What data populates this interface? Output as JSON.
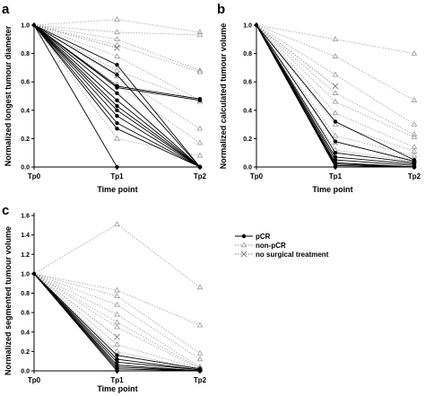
{
  "colors": {
    "pcr": "#000000",
    "non_pcr": "#999999",
    "no_surgery": "#777777",
    "axis": "#000000"
  },
  "legend": {
    "placement": "right-middle",
    "entries": [
      {
        "key": "pcr",
        "label": "pCR",
        "marker": "filled-circle",
        "line": "solid"
      },
      {
        "key": "non_pcr",
        "label": "non-pCR",
        "marker": "open-triangle",
        "line": "dotted"
      },
      {
        "key": "no_surgery",
        "label": "no surgical treatment",
        "marker": "cross",
        "line": "dotted"
      }
    ]
  },
  "chart_data": [
    {
      "panel_letter": "a",
      "type": "line",
      "xlabel": "Time point",
      "ylabel": "Normalized longest tumour diameter",
      "categories": [
        "Tp0",
        "Tp1",
        "Tp2"
      ],
      "ylim": [
        0,
        1.0
      ],
      "yticks": [
        "0.0",
        "0.2",
        "0.4",
        "0.6",
        "0.8",
        "1.0"
      ],
      "grid": false,
      "series": [
        {
          "group": "non_pcr",
          "values": [
            1.0,
            1.04,
            0.95
          ]
        },
        {
          "group": "non_pcr",
          "values": [
            1.0,
            0.95,
            0.93
          ]
        },
        {
          "group": "non_pcr",
          "values": [
            1.0,
            0.9,
            0.68
          ]
        },
        {
          "group": "non_pcr",
          "values": [
            1.0,
            0.86,
            0.67
          ]
        },
        {
          "group": "no_surgery",
          "values": [
            1.0,
            0.84,
            null
          ]
        },
        {
          "group": "non_pcr",
          "values": [
            1.0,
            0.78,
            0.47
          ]
        },
        {
          "group": "non_pcr",
          "values": [
            1.0,
            0.68,
            0.46
          ]
        },
        {
          "group": "non_pcr",
          "values": [
            1.0,
            0.64,
            0.27
          ]
        },
        {
          "group": "non_pcr",
          "values": [
            1.0,
            0.58,
            0.17
          ]
        },
        {
          "group": "non_pcr",
          "values": [
            1.0,
            0.2,
            0.08
          ]
        },
        {
          "group": "pcr",
          "values": [
            1.0,
            0.72,
            0.0
          ]
        },
        {
          "group": "pcr",
          "values": [
            1.0,
            0.65,
            0.0
          ]
        },
        {
          "group": "pcr",
          "values": [
            1.0,
            0.57,
            0.48
          ]
        },
        {
          "group": "pcr",
          "values": [
            1.0,
            0.56,
            0.47
          ]
        },
        {
          "group": "pcr",
          "values": [
            1.0,
            0.52,
            0.0
          ]
        },
        {
          "group": "pcr",
          "values": [
            1.0,
            0.47,
            0.0
          ]
        },
        {
          "group": "pcr",
          "values": [
            1.0,
            0.43,
            0.0
          ]
        },
        {
          "group": "pcr",
          "values": [
            1.0,
            0.4,
            0.0
          ]
        },
        {
          "group": "pcr",
          "values": [
            1.0,
            0.36,
            0.0
          ]
        },
        {
          "group": "pcr",
          "values": [
            1.0,
            0.31,
            0.0
          ]
        },
        {
          "group": "pcr",
          "values": [
            1.0,
            0.27,
            0.0
          ]
        },
        {
          "group": "pcr",
          "values": [
            1.0,
            0.0,
            null
          ]
        }
      ]
    },
    {
      "panel_letter": "b",
      "type": "line",
      "xlabel": "Time point",
      "ylabel": "Normalized calculated tumour volume",
      "categories": [
        "Tp0",
        "Tp1",
        "Tp2"
      ],
      "ylim": [
        0,
        1.0
      ],
      "yticks": [
        "0.0",
        "0.2",
        "0.4",
        "0.6",
        "0.8",
        "1.0"
      ],
      "grid": false,
      "series": [
        {
          "group": "non_pcr",
          "values": [
            1.0,
            0.9,
            0.8
          ]
        },
        {
          "group": "non_pcr",
          "values": [
            1.0,
            0.78,
            0.47
          ]
        },
        {
          "group": "non_pcr",
          "values": [
            1.0,
            0.65,
            0.3
          ]
        },
        {
          "group": "no_surgery",
          "values": [
            1.0,
            0.57,
            null
          ]
        },
        {
          "group": "non_pcr",
          "values": [
            1.0,
            0.52,
            0.23
          ]
        },
        {
          "group": "non_pcr",
          "values": [
            1.0,
            0.46,
            0.21
          ]
        },
        {
          "group": "non_pcr",
          "values": [
            1.0,
            0.38,
            0.14
          ]
        },
        {
          "group": "non_pcr",
          "values": [
            1.0,
            0.3,
            0.11
          ]
        },
        {
          "group": "non_pcr",
          "values": [
            1.0,
            0.22,
            0.08
          ]
        },
        {
          "group": "non_pcr",
          "values": [
            1.0,
            0.17,
            0.05
          ]
        },
        {
          "group": "non_pcr",
          "values": [
            1.0,
            0.12,
            0.04
          ]
        },
        {
          "group": "pcr",
          "values": [
            1.0,
            0.32,
            0.05
          ]
        },
        {
          "group": "pcr",
          "values": [
            1.0,
            0.18,
            0.04
          ]
        },
        {
          "group": "pcr",
          "values": [
            1.0,
            0.1,
            0.03
          ]
        },
        {
          "group": "pcr",
          "values": [
            1.0,
            0.07,
            0.02
          ]
        },
        {
          "group": "pcr",
          "values": [
            1.0,
            0.05,
            0.01
          ]
        },
        {
          "group": "pcr",
          "values": [
            1.0,
            0.03,
            0.0
          ]
        },
        {
          "group": "pcr",
          "values": [
            1.0,
            0.02,
            0.0
          ]
        },
        {
          "group": "pcr",
          "values": [
            1.0,
            0.01,
            0.0
          ]
        },
        {
          "group": "pcr",
          "values": [
            1.0,
            0.0,
            0.0
          ]
        }
      ]
    },
    {
      "panel_letter": "c",
      "type": "line",
      "xlabel": "Time point",
      "ylabel": "Normalized segmented tumour volume",
      "categories": [
        "Tp0",
        "Tp1",
        "Tp2"
      ],
      "ylim": [
        0,
        1.6
      ],
      "yticks": [
        "0.0",
        "0.2",
        "0.4",
        "0.6",
        "0.8",
        "1.0",
        "1.2",
        "1.4",
        "1.6"
      ],
      "grid": false,
      "series": [
        {
          "group": "non_pcr",
          "values": [
            1.0,
            1.51,
            0.86
          ]
        },
        {
          "group": "non_pcr",
          "values": [
            1.0,
            0.83,
            0.47
          ]
        },
        {
          "group": "non_pcr",
          "values": [
            1.0,
            0.77,
            0.18
          ]
        },
        {
          "group": "non_pcr",
          "values": [
            1.0,
            0.68,
            0.12
          ]
        },
        {
          "group": "non_pcr",
          "values": [
            1.0,
            0.58,
            0.04
          ]
        },
        {
          "group": "non_pcr",
          "values": [
            1.0,
            0.5,
            0.03
          ]
        },
        {
          "group": "non_pcr",
          "values": [
            1.0,
            0.45,
            0.02
          ]
        },
        {
          "group": "no_surgery",
          "values": [
            1.0,
            0.35,
            null
          ]
        },
        {
          "group": "non_pcr",
          "values": [
            1.0,
            0.27,
            0.02
          ]
        },
        {
          "group": "non_pcr",
          "values": [
            1.0,
            0.2,
            0.01
          ]
        },
        {
          "group": "pcr",
          "values": [
            1.0,
            0.16,
            0.02
          ]
        },
        {
          "group": "pcr",
          "values": [
            1.0,
            0.12,
            0.01
          ]
        },
        {
          "group": "pcr",
          "values": [
            1.0,
            0.09,
            0.01
          ]
        },
        {
          "group": "pcr",
          "values": [
            1.0,
            0.06,
            0.0
          ]
        },
        {
          "group": "pcr",
          "values": [
            1.0,
            0.04,
            0.0
          ]
        },
        {
          "group": "pcr",
          "values": [
            1.0,
            0.02,
            0.0
          ]
        },
        {
          "group": "pcr",
          "values": [
            1.0,
            0.0,
            0.0
          ]
        }
      ]
    }
  ]
}
